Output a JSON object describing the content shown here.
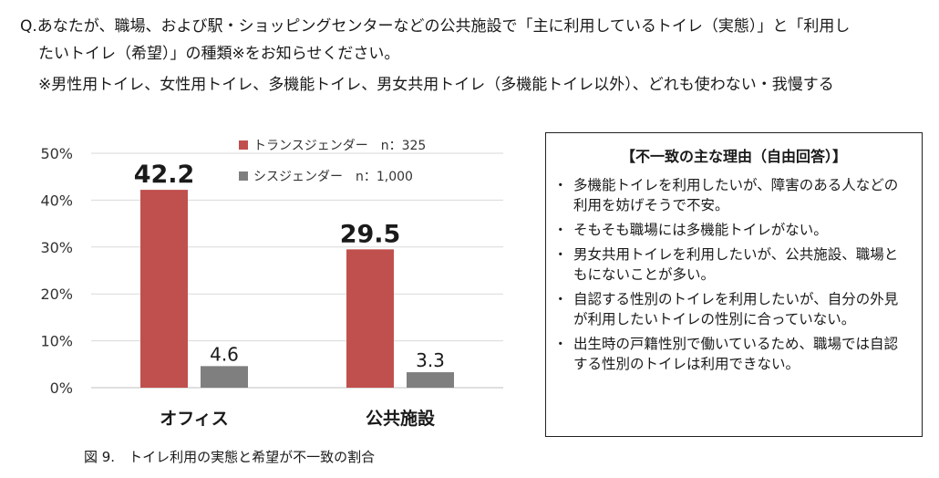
{
  "question": {
    "line1": "Q.あなたが、職場、および駅・ショッピングセンターなどの公共施設で「主に利用しているトイレ（実態）」と「利用し",
    "line2": "たいトイレ（希望）」の種類※をお知らせください。",
    "note": "※男性用トイレ、女性用トイレ、多機能トイレ、男女共用トイレ（多機能トイレ以外）、どれも使わない・我慢する"
  },
  "caption": "図 9.　トイレ利用の実態と希望が不一致の割合",
  "reasons": {
    "title": "【不一致の主な理由（自由回答）】",
    "items": [
      "多機能トイレを利用したいが、障害のある人などの利用を妨げそうで不安。",
      "そもそも職場には多機能トイレがない。",
      "男女共用トイレを利用したいが、公共施設、職場ともにないことが多い。",
      "自認する性別のトイレを利用したいが、自分の外見が利用したいトイレの性別に合っていない。",
      "出生時の戸籍性別で働いているため、職場では自認する性別のトイレは利用できない。"
    ]
  },
  "chart_data": {
    "type": "bar",
    "categories": [
      "オフィス",
      "公共施設"
    ],
    "series": [
      {
        "name": "トランスジェンダー　n：325",
        "values": [
          42.2,
          29.5
        ],
        "labels": [
          "42.2",
          "29.5"
        ],
        "color": "#c0504d"
      },
      {
        "name": "シスジェンダー　n：1,000",
        "values": [
          4.6,
          3.3
        ],
        "labels": [
          "4.6",
          "3.3"
        ],
        "color": "#7f7f7f"
      }
    ],
    "ylim": [
      0,
      50
    ],
    "yticks": [
      0,
      10,
      20,
      30,
      40,
      50
    ],
    "ytick_labels": [
      "0%",
      "10%",
      "20%",
      "30%",
      "40%",
      "50%"
    ],
    "grid": true,
    "legend": "top-center"
  }
}
